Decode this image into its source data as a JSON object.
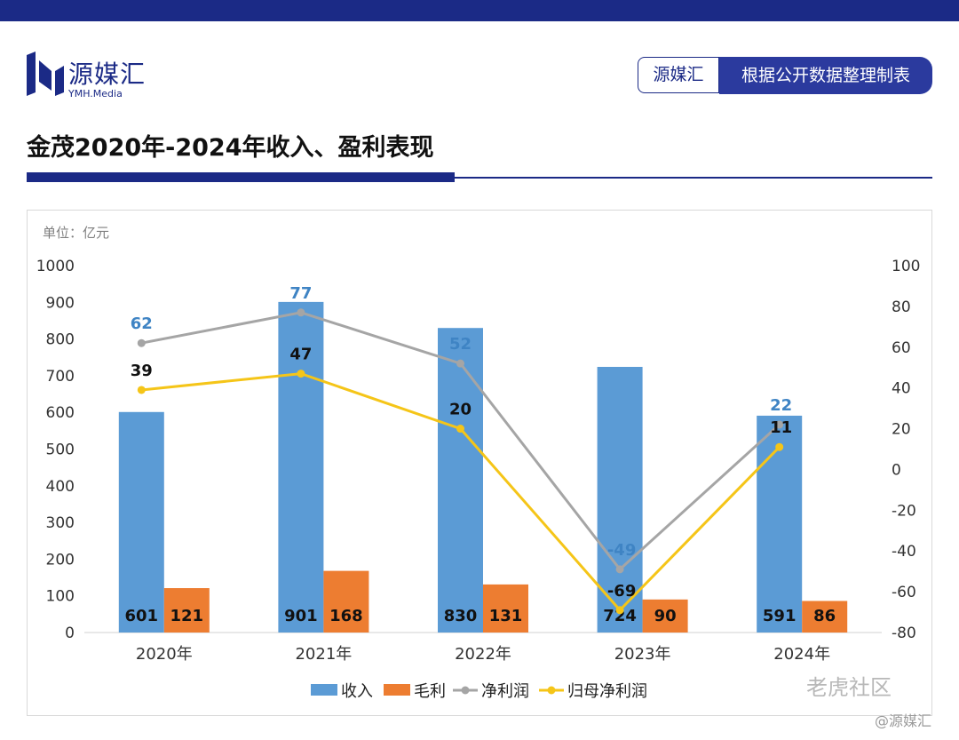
{
  "header": {
    "logo_text": "源媒汇",
    "logo_sub": "YMH.Media",
    "source_left": "源媒汇",
    "source_right": "根据公开数据整理制表",
    "title": "金茂2020年-2024年收入、盈利表现"
  },
  "colors": {
    "brand": "#1b2a86",
    "revenue": "#5b9bd5",
    "gross_profit": "#ed7d31",
    "net_profit": "#a5a5a5",
    "attributable_profit": "#f5c518",
    "net_label": "#3f84c4"
  },
  "chart_data": {
    "type": "bar",
    "unit_label": "单位：亿元",
    "categories": [
      "2020年",
      "2021年",
      "2022年",
      "2023年",
      "2024年"
    ],
    "left_axis": {
      "ylim": [
        0,
        1000
      ],
      "ticks": [
        "0",
        "100",
        "200",
        "300",
        "400",
        "500",
        "600",
        "700",
        "800",
        "900",
        "1000"
      ]
    },
    "right_axis": {
      "ylim": [
        -80,
        100
      ],
      "ticks": [
        "-80",
        "-60",
        "-40",
        "-20",
        "0",
        "20",
        "40",
        "60",
        "80",
        "100"
      ]
    },
    "series": [
      {
        "name": "收入",
        "kind": "bar",
        "axis": "left",
        "values": [
          601,
          901,
          830,
          724,
          591
        ]
      },
      {
        "name": "毛利",
        "kind": "bar",
        "axis": "left",
        "values": [
          121,
          168,
          131,
          90,
          86
        ]
      },
      {
        "name": "净利润",
        "kind": "line",
        "axis": "right",
        "values": [
          62,
          77,
          52,
          -49,
          22
        ]
      },
      {
        "name": "归母净利润",
        "kind": "line",
        "axis": "right",
        "values": [
          39,
          47,
          20,
          -69,
          11
        ]
      }
    ],
    "legend_position": "bottom",
    "grid": false
  },
  "watermark": {
    "main": "老虎社区",
    "sub": "@源媒汇"
  }
}
